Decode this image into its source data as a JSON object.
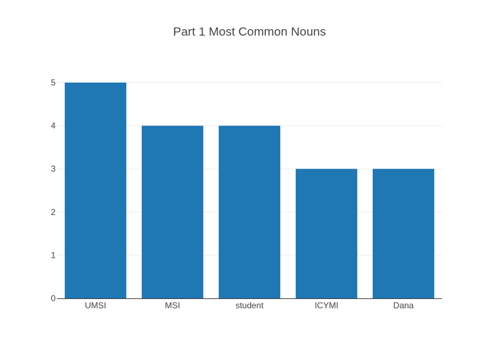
{
  "chart_data": {
    "type": "bar",
    "title": "Part 1 Most Common Nouns",
    "xlabel": "",
    "ylabel": "",
    "categories": [
      "UMSI",
      "MSI",
      "student",
      "ICYMI",
      "Dana"
    ],
    "values": [
      5,
      4,
      4,
      3,
      3
    ],
    "ylim": [
      0,
      5
    ],
    "yticks": [
      "0",
      "1",
      "2",
      "3",
      "4",
      "5"
    ],
    "grid": true,
    "legend": "none",
    "bar_color": "#1f77b4"
  }
}
